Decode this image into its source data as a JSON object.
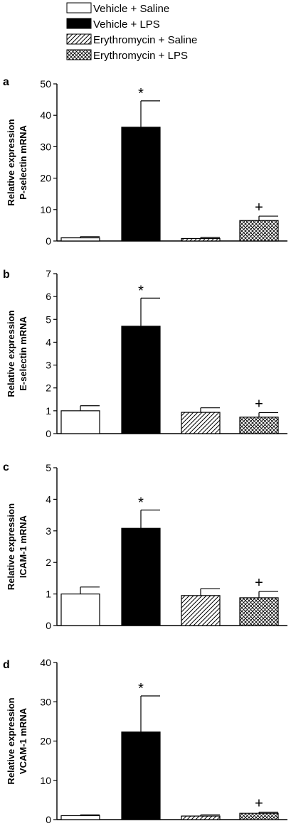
{
  "legend": [
    {
      "label": "Vehicle + Saline",
      "pattern": "open"
    },
    {
      "label": "Vehicle + LPS",
      "pattern": "solid"
    },
    {
      "label": "Erythromycin + Saline",
      "pattern": "hatch"
    },
    {
      "label": "Erythromycin + LPS",
      "pattern": "crosshatch"
    }
  ],
  "colors": {
    "solid": "#000000",
    "outline": "#000000",
    "open": "#ffffff"
  },
  "chart_data": [
    {
      "type": "bar",
      "panel": "a",
      "ylabel": [
        "Relative expression",
        "P-selectin mRNA"
      ],
      "ylim": [
        0,
        50
      ],
      "yticks": [
        0,
        10,
        20,
        30,
        40,
        50
      ],
      "values": [
        1.0,
        36.2,
        0.8,
        6.5
      ],
      "errors": [
        0.4,
        8.4,
        0.3,
        1.4
      ],
      "markers": [
        "",
        "*",
        "",
        "+"
      ]
    },
    {
      "type": "bar",
      "panel": "b",
      "ylabel": [
        "Relative expression",
        "E-selectin mRNA"
      ],
      "ylim": [
        0,
        7
      ],
      "yticks": [
        0,
        1,
        2,
        3,
        4,
        5,
        6,
        7
      ],
      "values": [
        1.0,
        4.7,
        0.93,
        0.72
      ],
      "errors": [
        0.22,
        1.23,
        0.2,
        0.2
      ],
      "markers": [
        "",
        "*",
        "",
        "+"
      ]
    },
    {
      "type": "bar",
      "panel": "c",
      "ylabel": [
        "Relative expression",
        "ICAM-1 mRNA"
      ],
      "ylim": [
        0,
        5
      ],
      "yticks": [
        0,
        1,
        2,
        3,
        4,
        5
      ],
      "values": [
        1.0,
        3.08,
        0.95,
        0.88
      ],
      "errors": [
        0.22,
        0.58,
        0.22,
        0.2
      ],
      "markers": [
        "",
        "*",
        "",
        "+"
      ]
    },
    {
      "type": "bar",
      "panel": "d",
      "ylabel": [
        "Relative expression",
        "VCAM-1 mRNA"
      ],
      "ylim": [
        0,
        40
      ],
      "yticks": [
        0,
        10,
        20,
        30,
        40
      ],
      "values": [
        1.0,
        22.3,
        0.9,
        1.6
      ],
      "errors": [
        0.2,
        9.2,
        0.3,
        0.3
      ],
      "markers": [
        "",
        "*",
        "",
        "+"
      ]
    }
  ]
}
